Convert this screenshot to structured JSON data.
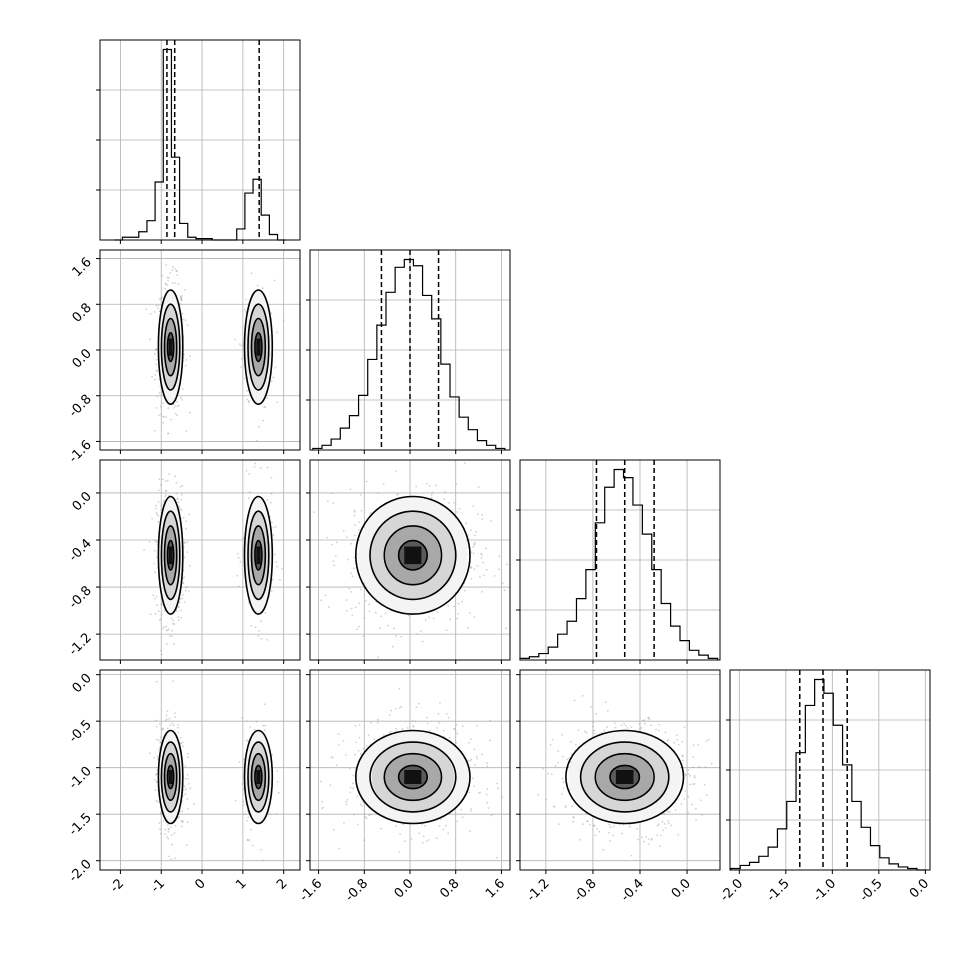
{
  "chart_data": {
    "type": "corner",
    "n_params": 4,
    "grid": true,
    "tick_labels": [
      [
        "-2",
        "-1",
        "0",
        "1",
        "2"
      ],
      [
        "-1.6",
        "-0.8",
        "0.0",
        "0.8",
        "1.6"
      ],
      [
        "-1.2",
        "-0.8",
        "-0.4",
        "0.0"
      ],
      [
        "-2.0",
        "-1.5",
        "-1.0",
        "-0.5",
        "0.0"
      ]
    ],
    "tick_values": [
      [
        -2,
        -1,
        0,
        1,
        2
      ],
      [
        -1.6,
        -0.8,
        0.0,
        0.8,
        1.6
      ],
      [
        -1.2,
        -0.8,
        -0.4,
        0.0
      ],
      [
        -2.0,
        -1.5,
        -1.0,
        -0.5,
        0.0
      ]
    ],
    "ranges": [
      [
        -2.5,
        2.4
      ],
      [
        -1.75,
        1.75
      ],
      [
        -1.42,
        0.28
      ],
      [
        -2.1,
        0.05
      ]
    ],
    "quantile_lines": [
      [
        -0.86,
        -0.67,
        1.4
      ],
      [
        -0.5,
        0.0,
        0.5
      ],
      [
        -0.77,
        -0.53,
        -0.28
      ],
      [
        -1.35,
        -1.1,
        -0.84
      ]
    ],
    "histograms": [
      {
        "bin_centers": [
          -2.05,
          -1.85,
          -1.65,
          -1.45,
          -1.25,
          -1.05,
          -0.85,
          -0.65,
          -0.45,
          -0.25,
          -0.05,
          0.15,
          0.35,
          0.55,
          0.75,
          0.95,
          1.15,
          1.35,
          1.55,
          1.75,
          1.95
        ],
        "counts": [
          0,
          2,
          2,
          6,
          14,
          42,
          138,
          60,
          12,
          2,
          1,
          1,
          0,
          0,
          0,
          8,
          34,
          44,
          18,
          4,
          0
        ]
      },
      {
        "bin_centers": [
          -1.62,
          -1.46,
          -1.3,
          -1.14,
          -0.98,
          -0.82,
          -0.66,
          -0.5,
          -0.34,
          -0.18,
          -0.02,
          0.14,
          0.3,
          0.46,
          0.62,
          0.78,
          0.94,
          1.1,
          1.26,
          1.42,
          1.58
        ],
        "counts": [
          1,
          3,
          7,
          14,
          22,
          35,
          58,
          80,
          101,
          117,
          122,
          118,
          99,
          84,
          55,
          34,
          21,
          13,
          6,
          3,
          1
        ]
      },
      {
        "bin_centers": [
          -1.38,
          -1.3,
          -1.22,
          -1.14,
          -1.06,
          -0.98,
          -0.9,
          -0.82,
          -0.74,
          -0.66,
          -0.58,
          -0.5,
          -0.42,
          -0.34,
          -0.26,
          -0.18,
          -0.1,
          -0.02,
          0.06,
          0.14,
          0.22
        ],
        "counts": [
          1,
          2,
          4,
          8,
          16,
          24,
          38,
          56,
          85,
          107,
          118,
          113,
          96,
          78,
          56,
          35,
          21,
          12,
          6,
          3,
          1
        ]
      },
      {
        "bin_centers": [
          -2.04,
          -1.94,
          -1.84,
          -1.74,
          -1.64,
          -1.54,
          -1.44,
          -1.34,
          -1.24,
          -1.14,
          -1.04,
          -0.94,
          -0.84,
          -0.74,
          -0.64,
          -0.54,
          -0.44,
          -0.34,
          -0.24,
          -0.14,
          -0.04
        ],
        "counts": [
          1,
          3,
          5,
          9,
          15,
          27,
          45,
          77,
          108,
          125,
          116,
          95,
          69,
          45,
          28,
          16,
          8,
          4,
          2,
          1,
          0
        ]
      }
    ],
    "modes": [
      [
        {
          "center": -0.77,
          "sd": 0.15,
          "weight": 0.72
        },
        {
          "center": 1.38,
          "sd": 0.17,
          "weight": 0.28
        }
      ],
      [
        {
          "center": 0.05,
          "sd": 0.5,
          "weight": 1
        }
      ],
      [
        {
          "center": -0.53,
          "sd": 0.25,
          "weight": 1
        }
      ],
      [
        {
          "center": -1.1,
          "sd": 0.25,
          "weight": 1
        }
      ]
    ],
    "contour_levels_sigma": [
      0.5,
      1.0,
      1.5,
      2.0
    ]
  }
}
